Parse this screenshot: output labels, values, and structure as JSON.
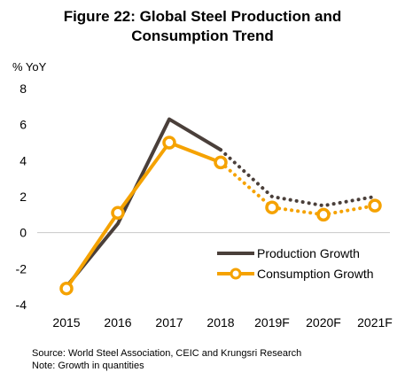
{
  "title_line1": "Figure 22: Global Steel Production and",
  "title_line2": "Consumption Trend",
  "unit_label": "% YoY",
  "source": "Source: World Steel Association, CEIC and Krungsri Research",
  "note": "Note: Growth in quantities",
  "chart_data": {
    "type": "line",
    "categories": [
      "2015",
      "2016",
      "2017",
      "2018",
      "2019F",
      "2020F",
      "2021F"
    ],
    "ylim": [
      -4,
      8
    ],
    "yticks": [
      -4,
      -2,
      0,
      2,
      4,
      6,
      8
    ],
    "ylabel": "% YoY",
    "grid": false,
    "legend_position": "bottom-right",
    "actual_until_index": 3,
    "series": [
      {
        "name": "Production Growth",
        "values": [
          -3.0,
          0.5,
          6.3,
          4.6,
          2.0,
          1.5,
          2.0
        ],
        "color": "#4a3f3a",
        "markers": false
      },
      {
        "name": "Consumption Growth",
        "values": [
          -3.1,
          1.1,
          5.0,
          3.9,
          1.4,
          1.0,
          1.5
        ],
        "color": "#f5a200",
        "markers": true
      }
    ]
  }
}
